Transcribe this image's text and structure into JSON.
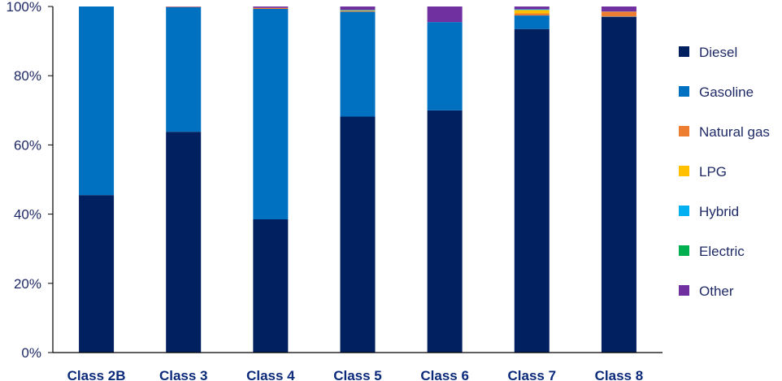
{
  "chart_data": {
    "type": "bar",
    "stacked": true,
    "categories": [
      "Class 2B",
      "Class 3",
      "Class 4",
      "Class 5",
      "Class 6",
      "Class 7",
      "Class 8"
    ],
    "series": [
      {
        "name": "Diesel",
        "color": "#002060",
        "values": [
          45.5,
          63.8,
          38.5,
          68.2,
          70.0,
          93.5,
          97.0
        ]
      },
      {
        "name": "Gasoline",
        "color": "#0070c0",
        "values": [
          54.5,
          36.0,
          60.8,
          30.3,
          25.5,
          3.9,
          0.1
        ]
      },
      {
        "name": "Natural gas",
        "color": "#ed7d31",
        "values": [
          0.0,
          0.1,
          0.3,
          0.2,
          0.0,
          0.6,
          1.3
        ]
      },
      {
        "name": "LPG",
        "color": "#ffc000",
        "values": [
          0.0,
          0.0,
          0.0,
          0.1,
          0.0,
          1.0,
          0.1
        ]
      },
      {
        "name": "Hybrid",
        "color": "#00b0f0",
        "values": [
          0.0,
          0.0,
          0.0,
          0.1,
          0.0,
          0.2,
          0.0
        ]
      },
      {
        "name": "Electric",
        "color": "#00b050",
        "values": [
          0.0,
          0.0,
          0.0,
          0.1,
          0.0,
          0.0,
          0.0
        ]
      },
      {
        "name": "Other",
        "color": "#7030a0",
        "values": [
          0.0,
          0.1,
          0.4,
          1.0,
          4.5,
          0.8,
          1.5
        ]
      }
    ],
    "y_ticks": [
      "0%",
      "20%",
      "40%",
      "60%",
      "80%",
      "100%"
    ],
    "ylim": [
      0,
      100
    ],
    "title": "",
    "xlabel": "",
    "ylabel": "",
    "grid": false,
    "legend_position": "right"
  }
}
